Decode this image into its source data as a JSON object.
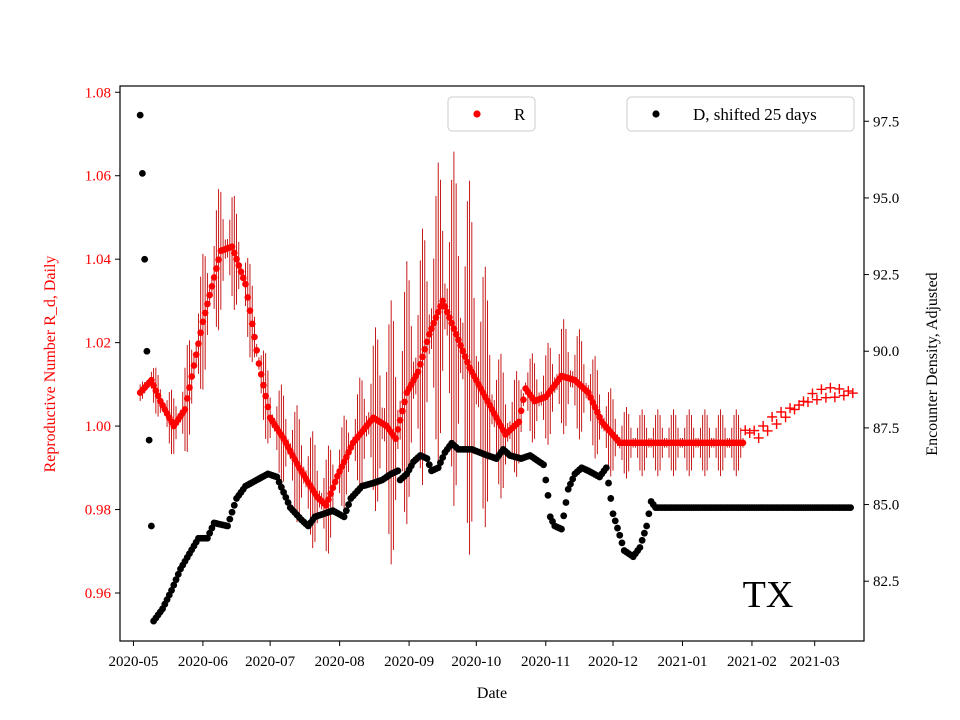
{
  "chart_data": {
    "type": "scatter",
    "xlabel": "Date",
    "ylabel_left": "Reproductive Number R_d, Daily",
    "ylabel_right": "Encounter Density, Adjusted",
    "annotation": "TX",
    "x_range": [
      "2020-04-25",
      "2021-03-23"
    ],
    "ylim_left": [
      0.9485,
      1.0815
    ],
    "ylim_right": [
      80.55,
      98.65
    ],
    "x_ticks": [
      "2020-05",
      "2020-06",
      "2020-07",
      "2020-08",
      "2020-09",
      "2020-10",
      "2020-11",
      "2020-12",
      "2021-01",
      "2021-02",
      "2021-03"
    ],
    "y_ticks_left": [
      "0.96",
      "0.98",
      "1.00",
      "1.02",
      "1.04",
      "1.06",
      "1.08"
    ],
    "y_ticks_right": [
      "82.5",
      "85.0",
      "87.5",
      "90.0",
      "92.5",
      "95.0",
      "97.5"
    ],
    "legend": [
      {
        "name": "R",
        "color": "#ff0000",
        "position": "top-center"
      },
      {
        "name": "D, shifted 25 days",
        "color": "#000000",
        "position": "top-right"
      }
    ],
    "colors": {
      "R": "#ff0000",
      "R_error": "#c00000",
      "D": "#000000",
      "R_forecast": "#ff0000"
    },
    "series": [
      {
        "name": "R",
        "axis": "left",
        "start_date": "2020-05-04",
        "end_date": "2021-01-28",
        "knots": [
          [
            0,
            1.008
          ],
          [
            5,
            1.011
          ],
          [
            9,
            1.006
          ],
          [
            15,
            1.0
          ],
          [
            20,
            1.004
          ],
          [
            28,
            1.025
          ],
          [
            36,
            1.042
          ],
          [
            41,
            1.043
          ],
          [
            47,
            1.034
          ],
          [
            53,
            1.015
          ],
          [
            58,
            1.002
          ],
          [
            64,
            0.997
          ],
          [
            71,
            0.99
          ],
          [
            79,
            0.983
          ],
          [
            83,
            0.981
          ],
          [
            88,
            0.988
          ],
          [
            95,
            0.996
          ],
          [
            104,
            1.002
          ],
          [
            110,
            1.0
          ],
          [
            114,
            0.997
          ],
          [
            119,
            1.008
          ],
          [
            124,
            1.013
          ],
          [
            129,
            1.022
          ],
          [
            135,
            1.03
          ],
          [
            141,
            1.022
          ],
          [
            147,
            1.014
          ],
          [
            155,
            1.006
          ],
          [
            163,
            0.998
          ],
          [
            169,
            1.001
          ],
          [
            172,
            1.009
          ],
          [
            176,
            1.006
          ],
          [
            181,
            1.007
          ],
          [
            188,
            1.012
          ],
          [
            194,
            1.011
          ],
          [
            200,
            1.008
          ],
          [
            206,
            1.001
          ],
          [
            214,
            0.996
          ],
          [
            219,
            0.996
          ]
        ],
        "error_half_width": [
          [
            0,
            0.002
          ],
          [
            8,
            0.006
          ],
          [
            15,
            0.008
          ],
          [
            25,
            0.016
          ],
          [
            36,
            0.017
          ],
          [
            45,
            0.012
          ],
          [
            55,
            0.01
          ],
          [
            70,
            0.014
          ],
          [
            80,
            0.014
          ],
          [
            95,
            0.01
          ],
          [
            105,
            0.022
          ],
          [
            113,
            0.033
          ],
          [
            125,
            0.03
          ],
          [
            136,
            0.038
          ],
          [
            145,
            0.048
          ],
          [
            150,
            0.04
          ],
          [
            160,
            0.018
          ],
          [
            172,
            0.01
          ],
          [
            190,
            0.014
          ],
          [
            205,
            0.012
          ],
          [
            219,
            0.008
          ]
        ]
      },
      {
        "name": "R forecast",
        "axis": "left",
        "marker": "plus",
        "start_date": "2021-01-29",
        "end_date": "2021-03-19",
        "values": [
          [
            0,
            0.999
          ],
          [
            6,
            0.998
          ],
          [
            12,
            1.001
          ],
          [
            18,
            1.003
          ],
          [
            24,
            1.005
          ],
          [
            30,
            1.007
          ],
          [
            36,
            1.008
          ],
          [
            45,
            1.008
          ],
          [
            49,
            1.008
          ]
        ]
      },
      {
        "name": "D, shifted 25 days",
        "axis": "right",
        "start_date": "2020-05-04",
        "end_date": "2021-03-17",
        "knots": [
          [
            0,
            97.7
          ],
          [
            1,
            95.8
          ],
          [
            2,
            93.0
          ],
          [
            3,
            90.0
          ],
          [
            4,
            87.1
          ],
          [
            5,
            84.3
          ],
          [
            6,
            81.2
          ],
          [
            10,
            81.6
          ],
          [
            14,
            82.2
          ],
          [
            18,
            82.9
          ],
          [
            22,
            83.4
          ],
          [
            26,
            83.9
          ],
          [
            30,
            83.9
          ],
          [
            33,
            84.4
          ],
          [
            39,
            84.3
          ],
          [
            43,
            85.2
          ],
          [
            47,
            85.6
          ],
          [
            52,
            85.8
          ],
          [
            57,
            86.0
          ],
          [
            61,
            85.9
          ],
          [
            64,
            85.4
          ],
          [
            67,
            84.9
          ],
          [
            72,
            84.5
          ],
          [
            75,
            84.3
          ],
          [
            78,
            84.6
          ],
          [
            82,
            84.7
          ],
          [
            86,
            84.8
          ],
          [
            91,
            84.6
          ],
          [
            94,
            85.2
          ],
          [
            99,
            85.6
          ],
          [
            104,
            85.7
          ],
          [
            108,
            85.8
          ],
          [
            112,
            86.0
          ],
          [
            115,
            86.1
          ],
          [
            116,
            85.8
          ],
          [
            119,
            86.0
          ],
          [
            122,
            86.4
          ],
          [
            125,
            86.6
          ],
          [
            128,
            86.5
          ],
          [
            130,
            86.1
          ],
          [
            133,
            86.2
          ],
          [
            136,
            86.7
          ],
          [
            139,
            87.0
          ],
          [
            142,
            86.8
          ],
          [
            148,
            86.8
          ],
          [
            155,
            86.6
          ],
          [
            159,
            86.5
          ],
          [
            162,
            86.8
          ],
          [
            165,
            86.6
          ],
          [
            170,
            86.5
          ],
          [
            174,
            86.6
          ],
          [
            180,
            86.3
          ],
          [
            182,
            85.3
          ],
          [
            183,
            84.6
          ],
          [
            185,
            84.3
          ],
          [
            188,
            84.2
          ],
          [
            191,
            85.5
          ],
          [
            194,
            86.0
          ],
          [
            197,
            86.2
          ],
          [
            200,
            86.1
          ],
          [
            205,
            85.9
          ],
          [
            208,
            86.2
          ],
          [
            211,
            84.7
          ],
          [
            214,
            84.0
          ],
          [
            216,
            83.5
          ],
          [
            220,
            83.3
          ],
          [
            223,
            83.6
          ],
          [
            226,
            84.3
          ],
          [
            228,
            85.1
          ],
          [
            230,
            84.9
          ],
          [
            275,
            84.9
          ]
        ]
      }
    ]
  }
}
